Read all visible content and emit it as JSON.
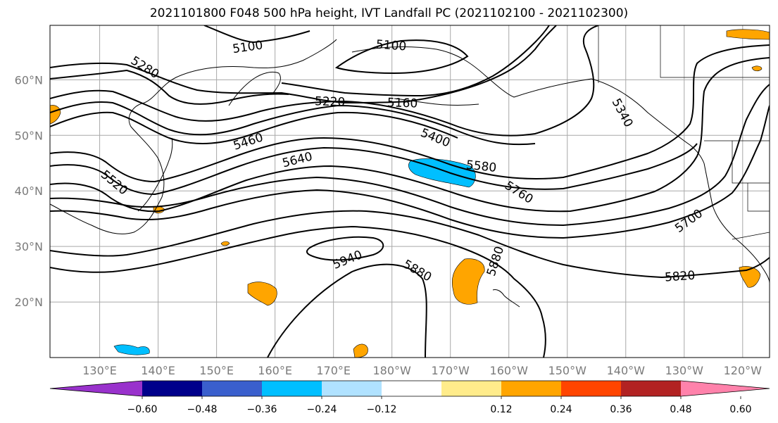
{
  "title": "2021101800 F048 500 hPa height, IVT Landfall PC (2021102100 - 2021102300)",
  "map": {
    "lat_ticks": [
      {
        "label": "60°N",
        "lat": 60
      },
      {
        "label": "50°N",
        "lat": 50
      },
      {
        "label": "40°N",
        "lat": 40
      },
      {
        "label": "30°N",
        "lat": 30
      },
      {
        "label": "20°N",
        "lat": 20
      }
    ],
    "lon_ticks": [
      {
        "label": "130°E",
        "lon": 130
      },
      {
        "label": "140°E",
        "lon": 140
      },
      {
        "label": "150°E",
        "lon": 150
      },
      {
        "label": "160°E",
        "lon": 160
      },
      {
        "label": "170°E",
        "lon": 170
      },
      {
        "label": "180°W",
        "lon": 180
      },
      {
        "label": "170°W",
        "lon": 190
      },
      {
        "label": "160°W",
        "lon": 200
      },
      {
        "label": "150°W",
        "lon": 210
      },
      {
        "label": "140°W",
        "lon": 220
      },
      {
        "label": "130°W",
        "lon": 230
      },
      {
        "label": "120°W",
        "lon": 240
      }
    ],
    "contour_labels": [
      "5100",
      "5100",
      "5280",
      "5220",
      "5160",
      "5460",
      "5400",
      "5340",
      "5640",
      "5580",
      "5520",
      "5760",
      "5700",
      "5940",
      "5880",
      "5880",
      "5820"
    ]
  },
  "colorbar": {
    "colors": [
      "#9932cc",
      "#00008b",
      "#3a5fcd",
      "#00bfff",
      "#b0e2ff",
      "#ffffff",
      "#ffec8b",
      "#ffa500",
      "#ff4500",
      "#b22222",
      "#ff82ab"
    ],
    "tick_labels": [
      "−0.60",
      "−0.48",
      "−0.36",
      "−0.24",
      "−0.12",
      "0.12",
      "0.24",
      "0.36",
      "0.48",
      "0.60"
    ]
  }
}
